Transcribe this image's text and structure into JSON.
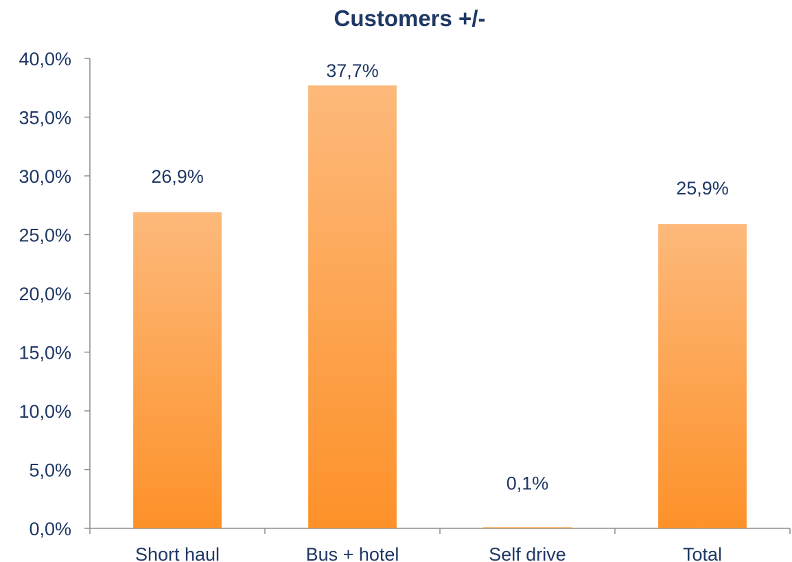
{
  "chart_data": {
    "type": "bar",
    "title": "Customers +/-",
    "xlabel": "",
    "ylabel": "",
    "categories": [
      "Short haul",
      "Bus + hotel",
      "Self drive",
      "Total"
    ],
    "values": [
      26.9,
      37.7,
      0.1,
      25.9
    ],
    "data_labels": [
      "26,9%",
      "37,7%",
      "0,1%",
      "25,9%"
    ],
    "ylim": [
      0,
      40
    ],
    "yticks": [
      0,
      5,
      10,
      15,
      20,
      25,
      30,
      35,
      40
    ],
    "ytick_labels": [
      "0,0%",
      "5,0%",
      "10,0%",
      "15,0%",
      "20,0%",
      "25,0%",
      "30,0%",
      "35,0%",
      "40,0%"
    ],
    "grid": false,
    "legend": "none",
    "colors": {
      "bar_top": "#fdb97b",
      "bar_bottom": "#fd9129",
      "text": "#1f3864",
      "axis": "#8c8c8c"
    }
  }
}
